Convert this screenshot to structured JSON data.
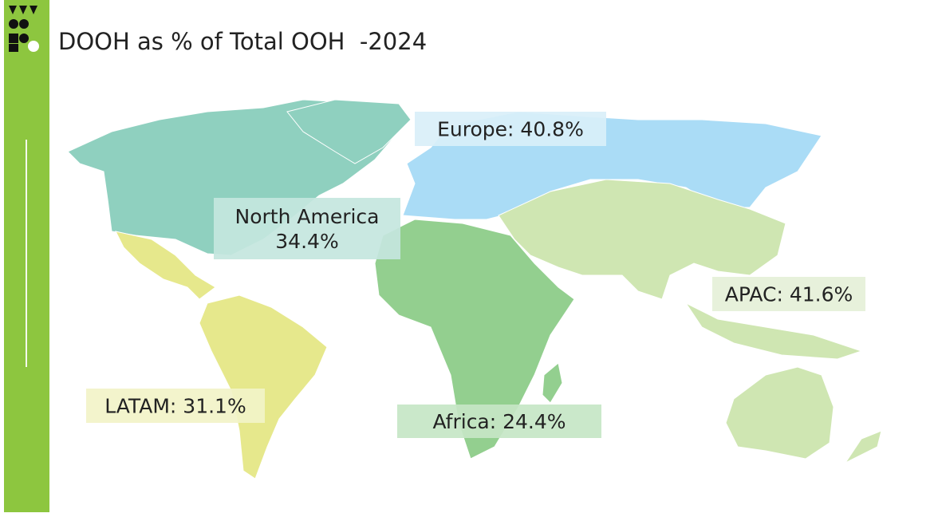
{
  "header": {
    "title": "DOOH as % of Total OOH  -2024"
  },
  "regions": [
    {
      "label": [
        "North America",
        "34.4%"
      ],
      "color": "#8fd0bf",
      "box_color": "#c4e6de"
    },
    {
      "label": [
        "Europe: 40.8%"
      ],
      "color": "#aadcf6",
      "box_color": "#d9eff9"
    },
    {
      "label": [
        "APAC: 41.6%"
      ],
      "color": "#cfe6b2",
      "box_color": "#e5f0d8"
    },
    {
      "label": [
        "LATAM: 31.1%"
      ],
      "color": "#e6e88c",
      "box_color": "#f2f3c8"
    },
    {
      "label": [
        "Africa: 24.4%"
      ],
      "color": "#93cf8f",
      "box_color": "#c6e6c5"
    }
  ]
}
